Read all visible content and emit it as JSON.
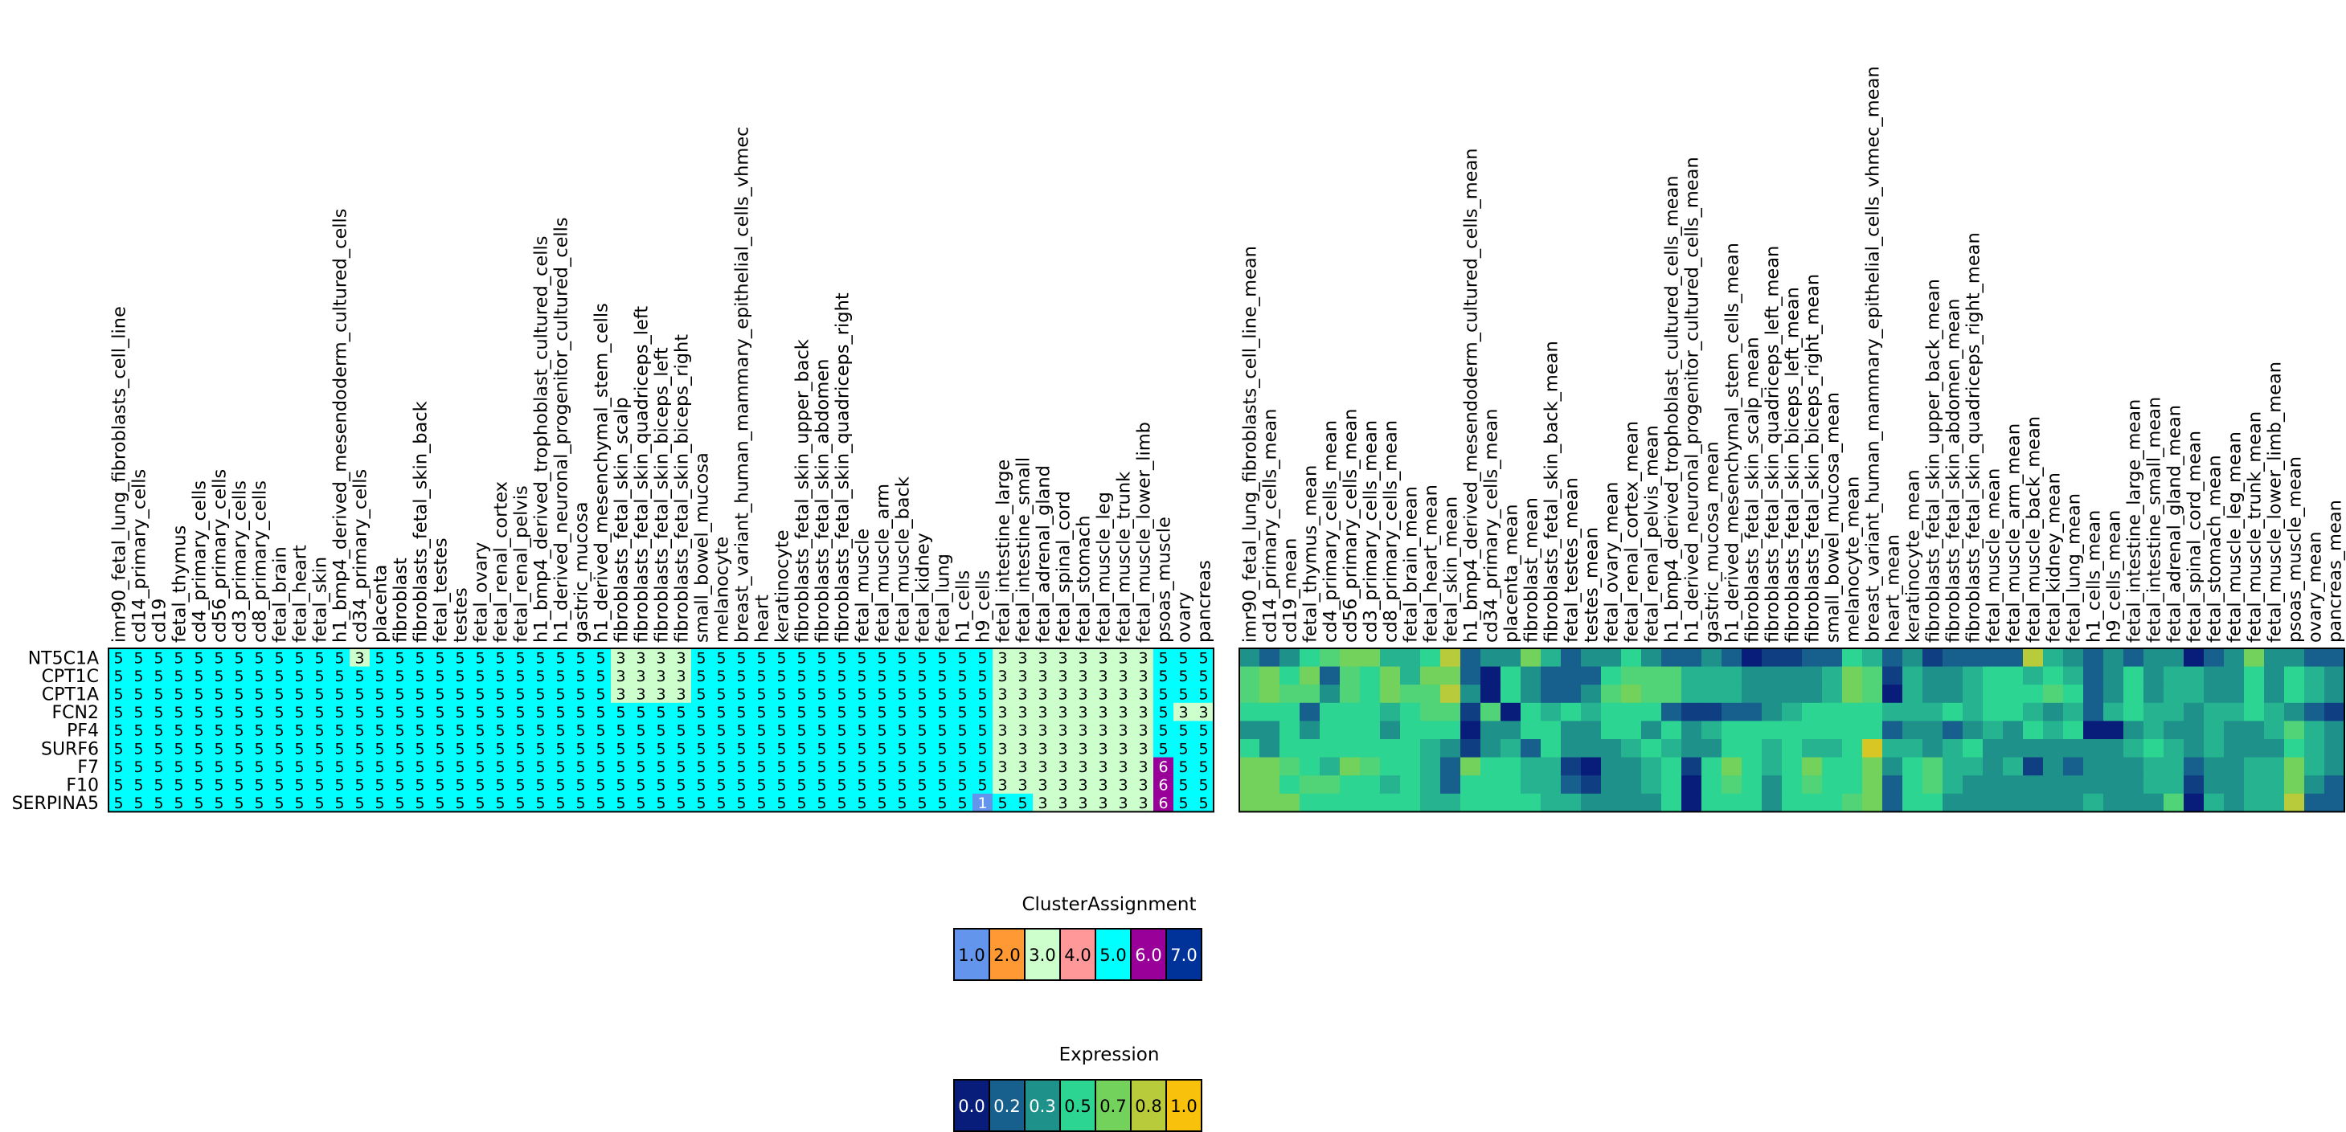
{
  "chart_data": [
    {
      "type": "heatmap",
      "title": "",
      "rows": [
        "NT5C1A",
        "CPT1C",
        "CPT1A",
        "FCN2",
        "PF4",
        "SURF6",
        "F7",
        "F10",
        "SERPINA5"
      ],
      "columns": [
        "imr90_fetal_lung_fibroblasts_cell_line",
        "cd14_primary_cells",
        "cd19",
        "fetal_thymus",
        "cd4_primary_cells",
        "cd56_primary_cells",
        "cd3_primary_cells",
        "cd8_primary_cells",
        "fetal_brain",
        "fetal_heart",
        "fetal_skin",
        "h1_bmp4_derived_mesendoderm_cultured_cells",
        "cd34_primary_cells",
        "placenta",
        "fibroblast",
        "fibroblasts_fetal_skin_back",
        "fetal_testes",
        "testes",
        "fetal_ovary",
        "fetal_renal_cortex",
        "fetal_renal_pelvis",
        "h1_bmp4_derived_trophoblast_cultured_cells",
        "h1_derived_neuronal_progenitor_cultured_cells",
        "gastric_mucosa",
        "h1_derived_mesenchymal_stem_cells",
        "fibroblasts_fetal_skin_scalp",
        "fibroblasts_fetal_skin_quadriceps_left",
        "fibroblasts_fetal_skin_biceps_left",
        "fibroblasts_fetal_skin_biceps_right",
        "small_bowel_mucosa",
        "melanocyte",
        "breast_variant_human_mammary_epithelial_cells_vhmec",
        "heart",
        "keratinocyte",
        "fibroblasts_fetal_skin_upper_back",
        "fibroblasts_fetal_skin_abdomen",
        "fibroblasts_fetal_skin_quadriceps_right",
        "fetal_muscle",
        "fetal_muscle_arm",
        "fetal_muscle_back",
        "fetal_kidney",
        "fetal_lung",
        "h1_cells",
        "h9_cells",
        "fetal_intestine_large",
        "fetal_intestine_small",
        "fetal_adrenal_gland",
        "fetal_spinal_cord",
        "fetal_stomach",
        "fetal_muscle_leg",
        "fetal_muscle_trunk",
        "fetal_muscle_lower_limb",
        "psoas_muscle",
        "ovary",
        "pancreas"
      ],
      "values": [
        [
          5,
          5,
          5,
          5,
          5,
          5,
          5,
          5,
          5,
          5,
          5,
          5,
          3,
          5,
          5,
          5,
          5,
          5,
          5,
          5,
          5,
          5,
          5,
          5,
          5,
          3,
          3,
          3,
          3,
          5,
          5,
          5,
          5,
          5,
          5,
          5,
          5,
          5,
          5,
          5,
          5,
          5,
          5,
          5,
          3,
          3,
          3,
          3,
          3,
          3,
          3,
          3,
          5,
          5,
          5
        ],
        [
          5,
          5,
          5,
          5,
          5,
          5,
          5,
          5,
          5,
          5,
          5,
          5,
          5,
          5,
          5,
          5,
          5,
          5,
          5,
          5,
          5,
          5,
          5,
          5,
          5,
          3,
          3,
          3,
          3,
          5,
          5,
          5,
          5,
          5,
          5,
          5,
          5,
          5,
          5,
          5,
          5,
          5,
          5,
          5,
          3,
          3,
          3,
          3,
          3,
          3,
          3,
          3,
          5,
          5,
          5
        ],
        [
          5,
          5,
          5,
          5,
          5,
          5,
          5,
          5,
          5,
          5,
          5,
          5,
          5,
          5,
          5,
          5,
          5,
          5,
          5,
          5,
          5,
          5,
          5,
          5,
          5,
          3,
          3,
          3,
          3,
          5,
          5,
          5,
          5,
          5,
          5,
          5,
          5,
          5,
          5,
          5,
          5,
          5,
          5,
          5,
          3,
          3,
          3,
          3,
          3,
          3,
          3,
          3,
          5,
          5,
          5
        ],
        [
          5,
          5,
          5,
          5,
          5,
          5,
          5,
          5,
          5,
          5,
          5,
          5,
          5,
          5,
          5,
          5,
          5,
          5,
          5,
          5,
          5,
          5,
          5,
          5,
          5,
          5,
          5,
          5,
          5,
          5,
          5,
          5,
          5,
          5,
          5,
          5,
          5,
          5,
          5,
          5,
          5,
          5,
          5,
          5,
          3,
          3,
          3,
          3,
          3,
          3,
          3,
          3,
          5,
          3,
          3
        ],
        [
          5,
          5,
          5,
          5,
          5,
          5,
          5,
          5,
          5,
          5,
          5,
          5,
          5,
          5,
          5,
          5,
          5,
          5,
          5,
          5,
          5,
          5,
          5,
          5,
          5,
          5,
          5,
          5,
          5,
          5,
          5,
          5,
          5,
          5,
          5,
          5,
          5,
          5,
          5,
          5,
          5,
          5,
          5,
          5,
          3,
          3,
          3,
          3,
          3,
          3,
          3,
          3,
          5,
          5,
          5
        ],
        [
          5,
          5,
          5,
          5,
          5,
          5,
          5,
          5,
          5,
          5,
          5,
          5,
          5,
          5,
          5,
          5,
          5,
          5,
          5,
          5,
          5,
          5,
          5,
          5,
          5,
          5,
          5,
          5,
          5,
          5,
          5,
          5,
          5,
          5,
          5,
          5,
          5,
          5,
          5,
          5,
          5,
          5,
          5,
          5,
          3,
          3,
          3,
          3,
          3,
          3,
          3,
          3,
          5,
          5,
          5
        ],
        [
          5,
          5,
          5,
          5,
          5,
          5,
          5,
          5,
          5,
          5,
          5,
          5,
          5,
          5,
          5,
          5,
          5,
          5,
          5,
          5,
          5,
          5,
          5,
          5,
          5,
          5,
          5,
          5,
          5,
          5,
          5,
          5,
          5,
          5,
          5,
          5,
          5,
          5,
          5,
          5,
          5,
          5,
          5,
          5,
          3,
          3,
          3,
          3,
          3,
          3,
          3,
          3,
          6,
          5,
          5
        ],
        [
          5,
          5,
          5,
          5,
          5,
          5,
          5,
          5,
          5,
          5,
          5,
          5,
          5,
          5,
          5,
          5,
          5,
          5,
          5,
          5,
          5,
          5,
          5,
          5,
          5,
          5,
          5,
          5,
          5,
          5,
          5,
          5,
          5,
          5,
          5,
          5,
          5,
          5,
          5,
          5,
          5,
          5,
          5,
          5,
          3,
          3,
          3,
          3,
          3,
          3,
          3,
          3,
          6,
          5,
          5
        ],
        [
          5,
          5,
          5,
          5,
          5,
          5,
          5,
          5,
          5,
          5,
          5,
          5,
          5,
          5,
          5,
          5,
          5,
          5,
          5,
          5,
          5,
          5,
          5,
          5,
          5,
          5,
          5,
          5,
          5,
          5,
          5,
          5,
          5,
          5,
          5,
          5,
          5,
          5,
          5,
          5,
          5,
          5,
          5,
          1,
          5,
          5,
          3,
          3,
          3,
          3,
          3,
          3,
          6,
          5,
          5
        ]
      ],
      "cell_labels": "values"
    },
    {
      "type": "heatmap",
      "title": "",
      "rows": [
        "NT5C1A",
        "CPT1C",
        "CPT1A",
        "FCN2",
        "PF4",
        "SURF6",
        "F7",
        "F10",
        "SERPINA5"
      ],
      "columns": [
        "imr90_fetal_lung_fibroblasts_cell_line_mean",
        "cd14_primary_cells_mean",
        "cd19_mean",
        "fetal_thymus_mean",
        "cd4_primary_cells_mean",
        "cd56_primary_cells_mean",
        "cd3_primary_cells_mean",
        "cd8_primary_cells_mean",
        "fetal_brain_mean",
        "fetal_heart_mean",
        "fetal_skin_mean",
        "h1_bmp4_derived_mesendoderm_cultured_cells_mean",
        "cd34_primary_cells_mean",
        "placenta_mean",
        "fibroblast_mean",
        "fibroblasts_fetal_skin_back_mean",
        "fetal_testes_mean",
        "testes_mean",
        "fetal_ovary_mean",
        "fetal_renal_cortex_mean",
        "fetal_renal_pelvis_mean",
        "h1_bmp4_derived_trophoblast_cultured_cells_mean",
        "h1_derived_neuronal_progenitor_cultured_cells_mean",
        "gastric_mucosa_mean",
        "h1_derived_mesenchymal_stem_cells_mean",
        "fibroblasts_fetal_skin_scalp_mean",
        "fibroblasts_fetal_skin_quadriceps_left_mean",
        "fibroblasts_fetal_skin_biceps_left_mean",
        "fibroblasts_fetal_skin_biceps_right_mean",
        "small_bowel_mucosa_mean",
        "melanocyte_mean",
        "breast_variant_human_mammary_epithelial_cells_vhmec_mean",
        "heart_mean",
        "keratinocyte_mean",
        "fibroblasts_fetal_skin_upper_back_mean",
        "fibroblasts_fetal_skin_abdomen_mean",
        "fibroblasts_fetal_skin_quadriceps_right_mean",
        "fetal_muscle_mean",
        "fetal_muscle_arm_mean",
        "fetal_muscle_back_mean",
        "fetal_kidney_mean",
        "fetal_lung_mean",
        "h1_cells_mean",
        "h9_cells_mean",
        "fetal_intestine_large_mean",
        "fetal_intestine_small_mean",
        "fetal_adrenal_gland_mean",
        "fetal_spinal_cord_mean",
        "fetal_stomach_mean",
        "fetal_muscle_leg_mean",
        "fetal_muscle_trunk_mean",
        "fetal_muscle_lower_limb_mean",
        "psoas_muscle_mean",
        "ovary_mean",
        "pancreas_mean"
      ],
      "values": [
        [
          0.3,
          0.2,
          0.3,
          0.5,
          0.6,
          0.7,
          0.7,
          0.4,
          0.4,
          0.5,
          0.8,
          0.2,
          0.3,
          0.3,
          0.7,
          0.4,
          0.2,
          0.3,
          0.3,
          0.5,
          0.3,
          0.2,
          0.2,
          0.3,
          0.2,
          0.0,
          0.1,
          0.1,
          0.2,
          0.2,
          0.5,
          0.4,
          0.2,
          0.3,
          0.1,
          0.2,
          0.2,
          0.2,
          0.2,
          0.8,
          0.4,
          0.3,
          0.2,
          0.3,
          0.2,
          0.3,
          0.3,
          0.0,
          0.2,
          0.3,
          0.7,
          0.3,
          0.3,
          0.2,
          0.2
        ],
        [
          0.6,
          0.7,
          0.5,
          0.7,
          0.2,
          0.6,
          0.5,
          0.7,
          0.4,
          0.7,
          0.7,
          0.2,
          0.0,
          0.5,
          0.3,
          0.2,
          0.2,
          0.2,
          0.5,
          0.6,
          0.6,
          0.6,
          0.4,
          0.4,
          0.4,
          0.3,
          0.3,
          0.3,
          0.3,
          0.4,
          0.7,
          0.6,
          0.1,
          0.4,
          0.3,
          0.3,
          0.4,
          0.5,
          0.5,
          0.4,
          0.5,
          0.4,
          0.2,
          0.3,
          0.5,
          0.3,
          0.4,
          0.4,
          0.3,
          0.3,
          0.5,
          0.3,
          0.5,
          0.4,
          0.3
        ],
        [
          0.6,
          0.7,
          0.6,
          0.6,
          0.3,
          0.6,
          0.5,
          0.7,
          0.6,
          0.6,
          0.8,
          0.3,
          0.0,
          0.5,
          0.3,
          0.2,
          0.2,
          0.3,
          0.6,
          0.7,
          0.6,
          0.6,
          0.4,
          0.4,
          0.4,
          0.3,
          0.3,
          0.3,
          0.3,
          0.4,
          0.7,
          0.6,
          0.0,
          0.4,
          0.3,
          0.3,
          0.4,
          0.5,
          0.5,
          0.5,
          0.6,
          0.5,
          0.2,
          0.3,
          0.5,
          0.3,
          0.4,
          0.4,
          0.3,
          0.3,
          0.5,
          0.3,
          0.5,
          0.4,
          0.3
        ],
        [
          0.5,
          0.5,
          0.5,
          0.2,
          0.5,
          0.5,
          0.5,
          0.4,
          0.5,
          0.6,
          0.6,
          0.1,
          0.6,
          0.0,
          0.5,
          0.4,
          0.5,
          0.4,
          0.5,
          0.5,
          0.5,
          0.2,
          0.1,
          0.1,
          0.2,
          0.2,
          0.3,
          0.4,
          0.5,
          0.5,
          0.5,
          0.5,
          0.4,
          0.4,
          0.4,
          0.5,
          0.4,
          0.5,
          0.5,
          0.4,
          0.3,
          0.4,
          0.2,
          0.4,
          0.5,
          0.4,
          0.4,
          0.3,
          0.4,
          0.4,
          0.5,
          0.4,
          0.3,
          0.2,
          0.1
        ],
        [
          0.3,
          0.3,
          0.5,
          0.3,
          0.5,
          0.5,
          0.5,
          0.3,
          0.5,
          0.5,
          0.5,
          0.0,
          0.3,
          0.3,
          0.5,
          0.5,
          0.3,
          0.3,
          0.5,
          0.5,
          0.3,
          0.5,
          0.3,
          0.4,
          0.5,
          0.5,
          0.5,
          0.5,
          0.5,
          0.5,
          0.5,
          0.5,
          0.2,
          0.3,
          0.3,
          0.2,
          0.3,
          0.4,
          0.3,
          0.5,
          0.4,
          0.5,
          0.0,
          0.0,
          0.3,
          0.4,
          0.3,
          0.3,
          0.4,
          0.3,
          0.3,
          0.4,
          0.6,
          0.4,
          0.3
        ],
        [
          0.5,
          0.3,
          0.5,
          0.5,
          0.5,
          0.5,
          0.5,
          0.5,
          0.5,
          0.4,
          0.3,
          0.1,
          0.3,
          0.4,
          0.2,
          0.5,
          0.3,
          0.3,
          0.3,
          0.4,
          0.5,
          0.4,
          0.3,
          0.3,
          0.5,
          0.5,
          0.4,
          0.5,
          0.4,
          0.4,
          0.5,
          0.9,
          0.4,
          0.4,
          0.3,
          0.4,
          0.5,
          0.3,
          0.3,
          0.3,
          0.3,
          0.3,
          0.3,
          0.3,
          0.4,
          0.5,
          0.4,
          0.3,
          0.4,
          0.3,
          0.3,
          0.3,
          0.5,
          0.4,
          0.3
        ],
        [
          0.7,
          0.7,
          0.6,
          0.5,
          0.4,
          0.7,
          0.6,
          0.5,
          0.5,
          0.4,
          0.2,
          0.7,
          0.5,
          0.5,
          0.4,
          0.4,
          0.1,
          0.0,
          0.3,
          0.3,
          0.4,
          0.5,
          0.1,
          0.5,
          0.7,
          0.5,
          0.4,
          0.5,
          0.7,
          0.5,
          0.5,
          0.7,
          0.3,
          0.5,
          0.6,
          0.4,
          0.4,
          0.3,
          0.4,
          0.1,
          0.3,
          0.2,
          0.3,
          0.3,
          0.3,
          0.4,
          0.4,
          0.2,
          0.3,
          0.3,
          0.4,
          0.4,
          0.7,
          0.4,
          0.3
        ],
        [
          0.7,
          0.7,
          0.5,
          0.6,
          0.6,
          0.5,
          0.5,
          0.4,
          0.5,
          0.4,
          0.2,
          0.5,
          0.5,
          0.5,
          0.4,
          0.4,
          0.2,
          0.1,
          0.3,
          0.3,
          0.4,
          0.5,
          0.0,
          0.5,
          0.6,
          0.5,
          0.3,
          0.5,
          0.6,
          0.5,
          0.5,
          0.7,
          0.2,
          0.5,
          0.6,
          0.4,
          0.3,
          0.3,
          0.3,
          0.3,
          0.3,
          0.3,
          0.3,
          0.3,
          0.3,
          0.4,
          0.4,
          0.1,
          0.3,
          0.3,
          0.4,
          0.4,
          0.7,
          0.3,
          0.2
        ],
        [
          0.7,
          0.7,
          0.7,
          0.5,
          0.5,
          0.5,
          0.5,
          0.5,
          0.5,
          0.4,
          0.4,
          0.5,
          0.5,
          0.5,
          0.5,
          0.4,
          0.4,
          0.3,
          0.3,
          0.3,
          0.3,
          0.5,
          0.0,
          0.5,
          0.5,
          0.5,
          0.3,
          0.5,
          0.5,
          0.5,
          0.6,
          0.7,
          0.2,
          0.5,
          0.5,
          0.3,
          0.3,
          0.3,
          0.3,
          0.3,
          0.3,
          0.3,
          0.4,
          0.3,
          0.3,
          0.3,
          0.6,
          0.0,
          0.4,
          0.3,
          0.4,
          0.4,
          0.8,
          0.2,
          0.2
        ]
      ],
      "colormap": "viridis"
    }
  ],
  "legends": {
    "cluster": {
      "title": "ClusterAssignment",
      "items": [
        {
          "label": "1.0",
          "color": "#6495ED"
        },
        {
          "label": "2.0",
          "color": "#FF9933"
        },
        {
          "label": "3.0",
          "color": "#CCFFCC"
        },
        {
          "label": "4.0",
          "color": "#FF9999"
        },
        {
          "label": "5.0",
          "color": "#00FFFF"
        },
        {
          "label": "6.0",
          "color": "#990099"
        },
        {
          "label": "7.0",
          "color": "#003399"
        }
      ]
    },
    "expression": {
      "title": "Expression",
      "items": [
        {
          "label": "0.0",
          "color": "#081d7a"
        },
        {
          "label": "0.2",
          "color": "#175f8c"
        },
        {
          "label": "0.3",
          "color": "#1f918b"
        },
        {
          "label": "0.5",
          "color": "#2cd592"
        },
        {
          "label": "0.7",
          "color": "#73d25b"
        },
        {
          "label": "0.8",
          "color": "#b8cb3b"
        },
        {
          "label": "1.0",
          "color": "#f7c10c"
        }
      ]
    }
  }
}
